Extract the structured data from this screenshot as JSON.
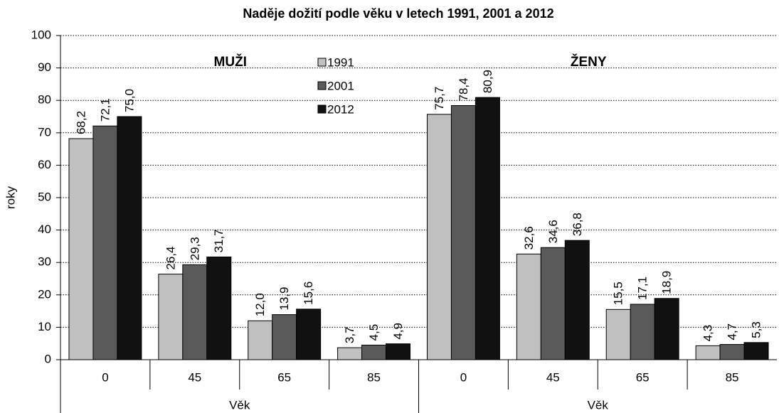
{
  "chart_data": {
    "type": "bar",
    "title": "Naděje dožití podle věku v letech 1991, 2001 a 2012",
    "ylabel": "roky",
    "categories": [
      "0",
      "45",
      "65",
      "85",
      "0",
      "45",
      "65",
      "85"
    ],
    "category_groups": [
      {
        "label": "Věk",
        "annotation": "MUŽI",
        "size": 4
      },
      {
        "label": "Věk",
        "annotation": "ŽENY",
        "size": 4
      }
    ],
    "series": [
      {
        "name": "1991",
        "color": "#c0c0c0",
        "values": [
          68.2,
          26.4,
          12.0,
          3.7,
          75.7,
          32.6,
          15.5,
          4.3
        ],
        "value_labels": [
          "68,2",
          "26,4",
          "12,0",
          "3,7",
          "75,7",
          "32,6",
          "15,5",
          "4,3"
        ]
      },
      {
        "name": "2001",
        "color": "#5a5a5a",
        "values": [
          72.1,
          29.3,
          13.9,
          4.5,
          78.4,
          34.6,
          17.1,
          4.7
        ],
        "value_labels": [
          "72,1",
          "29,3",
          "13,9",
          "4,5",
          "78,4",
          "34,6",
          "17,1",
          "4,7"
        ]
      },
      {
        "name": "2012",
        "color": "#111111",
        "values": [
          75.0,
          31.7,
          15.6,
          4.9,
          80.9,
          36.8,
          18.9,
          5.3
        ],
        "value_labels": [
          "75,0",
          "31,7",
          "15,6",
          "4,9",
          "80,9",
          "36,8",
          "18,9",
          "5,3"
        ]
      }
    ],
    "ylim": [
      0,
      100
    ],
    "yticks": [
      0,
      10,
      20,
      30,
      40,
      50,
      60,
      70,
      80,
      90,
      100
    ],
    "grid": true,
    "legend": "top-center"
  }
}
